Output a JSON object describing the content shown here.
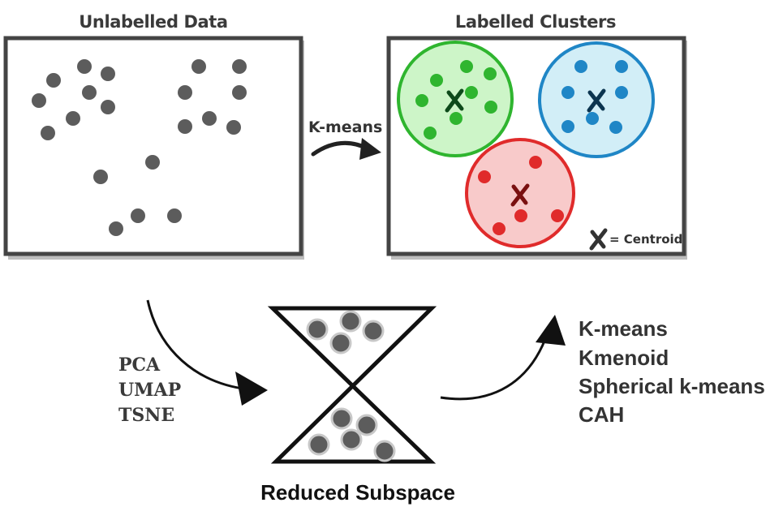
{
  "top": {
    "left_panel": {
      "title": "Unlabelled Data"
    },
    "right_panel": {
      "title": "Labelled Clusters",
      "legend": {
        "symbol": "✗",
        "text": "= Centroid"
      }
    },
    "transition": {
      "label": "K-means"
    }
  },
  "bottom": {
    "dim_reduction_methods": [
      "PCA",
      "UMAP",
      "TSNE"
    ],
    "subspace_label": "Reduced Subspace",
    "clustering_algorithms": [
      "K-means",
      "Kmenoid",
      "Spherical k-means",
      "CAH"
    ]
  },
  "colors": {
    "frame": "#444444",
    "points_unlabelled": "#5c5c5c",
    "cluster_green": "#2fb52f",
    "cluster_green_fill": "#cdf5c8",
    "cluster_blue": "#1f86c6",
    "cluster_blue_fill": "#d2eef7",
    "cluster_red": "#e02b2b",
    "cluster_red_fill": "#f8caca",
    "centroid_green": "#0d4a1a",
    "centroid_blue": "#0c3550",
    "centroid_red": "#7a1010",
    "text_dark": "#333333"
  },
  "icons": {
    "arrow": "curved-arrow-icon",
    "hourglass": "hourglass-icon",
    "centroid": "cross-mark-icon"
  }
}
